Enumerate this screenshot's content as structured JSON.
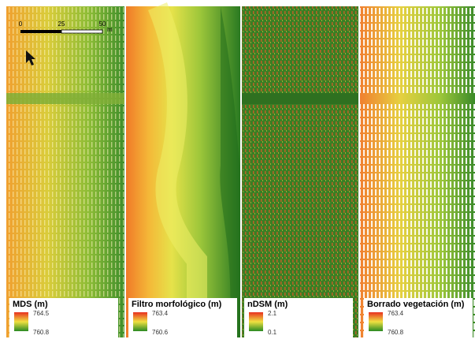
{
  "scale_bar": {
    "ticks": [
      "0",
      "25",
      "50"
    ],
    "unit": "m"
  },
  "panels": [
    {
      "title": "MDS (m)",
      "legend_max": "764.5",
      "legend_min": "760.8"
    },
    {
      "title": "Filtro morfológico (m)",
      "legend_max": "763.4",
      "legend_min": "760.6"
    },
    {
      "title": "nDSM (m)",
      "legend_max": "2.1",
      "legend_min": "0.1"
    },
    {
      "title": "Borrado vegetación (m)",
      "legend_max": "763.4",
      "legend_min": "760.8"
    }
  ]
}
